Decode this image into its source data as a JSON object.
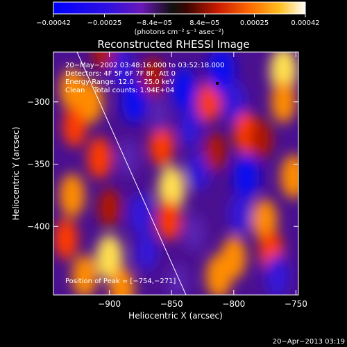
{
  "chart_data": {
    "type": "heatmap",
    "title": "Reconstructed RHESSI Image",
    "xlabel": "Heliocentric X (arcsec)",
    "ylabel": "Heliocentric Y (arcsec)",
    "xlim": [
      -945,
      -748
    ],
    "ylim": [
      -455,
      -260
    ],
    "xticks": [
      -900,
      -850,
      -800,
      -750
    ],
    "yticks": [
      -300,
      -350,
      -400
    ],
    "xtick_labels": [
      "−900",
      "−850",
      "−800",
      "−750"
    ],
    "ytick_labels": [
      "−300",
      "−350",
      "−400"
    ],
    "colorbar": {
      "label": "(photons cm⁻² s⁻¹ asec⁻²)",
      "range": [
        -0.00042,
        0.00042
      ],
      "tick_values": [
        -0.00042,
        -0.00025,
        -8.4e-05,
        8.4e-05,
        0.00025,
        0.00042
      ],
      "tick_labels": [
        "−0.00042",
        "−0.00025",
        "−8.4e−05",
        "8.4e−05",
        "0.00025",
        "0.00042"
      ],
      "colors": [
        "#0000ff",
        "#6a18b8",
        "#101010",
        "#c81a00",
        "#ff6a00",
        "#ffffff"
      ]
    },
    "annotations": [
      "20−May−2002 03:48:16.000 to 03:52:18.000",
      "Detectors: 4F 5F 6F 7F 8F, Att 0",
      "Energy Range: 12.0 − 25.0 keV",
      "Clean    Total counts: 1.94E+04"
    ],
    "peak_label": "Position of Peak = [−754,−271]",
    "peak_position": [
      -754,
      -271
    ],
    "map": [
      {
        "x": -930,
        "y": -290,
        "v": 0.00028
      },
      {
        "x": -928,
        "y": -320,
        "v": 0.00022
      },
      {
        "x": -915,
        "y": -300,
        "v": 0.0003
      },
      {
        "x": -908,
        "y": -345,
        "v": 0.00026
      },
      {
        "x": -930,
        "y": -375,
        "v": 0.00032
      },
      {
        "x": -935,
        "y": -410,
        "v": 0.00024
      },
      {
        "x": -920,
        "y": -440,
        "v": 0.0003
      },
      {
        "x": -900,
        "y": -425,
        "v": 0.00038
      },
      {
        "x": -890,
        "y": -450,
        "v": 0.00028
      },
      {
        "x": -890,
        "y": -272,
        "v": -0.00022
      },
      {
        "x": -880,
        "y": -300,
        "v": -0.0003
      },
      {
        "x": -885,
        "y": -345,
        "v": -0.00016
      },
      {
        "x": -875,
        "y": -390,
        "v": -0.00028
      },
      {
        "x": -870,
        "y": -420,
        "v": -0.00018
      },
      {
        "x": -865,
        "y": -280,
        "v": 0.00018
      },
      {
        "x": -858,
        "y": -335,
        "v": 0.00026
      },
      {
        "x": -850,
        "y": -370,
        "v": 0.0004
      },
      {
        "x": -852,
        "y": -395,
        "v": 0.00022
      },
      {
        "x": -840,
        "y": -290,
        "v": -0.00032
      },
      {
        "x": -835,
        "y": -320,
        "v": -0.00022
      },
      {
        "x": -828,
        "y": -355,
        "v": -0.0002
      },
      {
        "x": -832,
        "y": -405,
        "v": -0.00014
      },
      {
        "x": -820,
        "y": -300,
        "v": 0.0002
      },
      {
        "x": -815,
        "y": -340,
        "v": 0.00014
      },
      {
        "x": -812,
        "y": -440,
        "v": 0.00034
      },
      {
        "x": -800,
        "y": -425,
        "v": 0.0003
      },
      {
        "x": -810,
        "y": -275,
        "v": -0.0004
      },
      {
        "x": -800,
        "y": -300,
        "v": -0.00026
      },
      {
        "x": -790,
        "y": -325,
        "v": 0.00026
      },
      {
        "x": -790,
        "y": -360,
        "v": -0.00034
      },
      {
        "x": -795,
        "y": -390,
        "v": -0.00018
      },
      {
        "x": -778,
        "y": -330,
        "v": 0.00018
      },
      {
        "x": -775,
        "y": -395,
        "v": 0.0003
      },
      {
        "x": -770,
        "y": -420,
        "v": 0.00024
      },
      {
        "x": -760,
        "y": -275,
        "v": 0.00042
      },
      {
        "x": -760,
        "y": -300,
        "v": 0.00028
      },
      {
        "x": -752,
        "y": -360,
        "v": 0.00034
      },
      {
        "x": -765,
        "y": -440,
        "v": -0.00028
      },
      {
        "x": -900,
        "y": -385,
        "v": 0.00016
      },
      {
        "x": -905,
        "y": -260,
        "v": 0.00012
      },
      {
        "x": -845,
        "y": -445,
        "v": -0.00012
      },
      {
        "x": -860,
        "y": -310,
        "v": -0.0001
      }
    ]
  },
  "footer": {
    "timestamp": "20−Apr−2013 03:19"
  }
}
